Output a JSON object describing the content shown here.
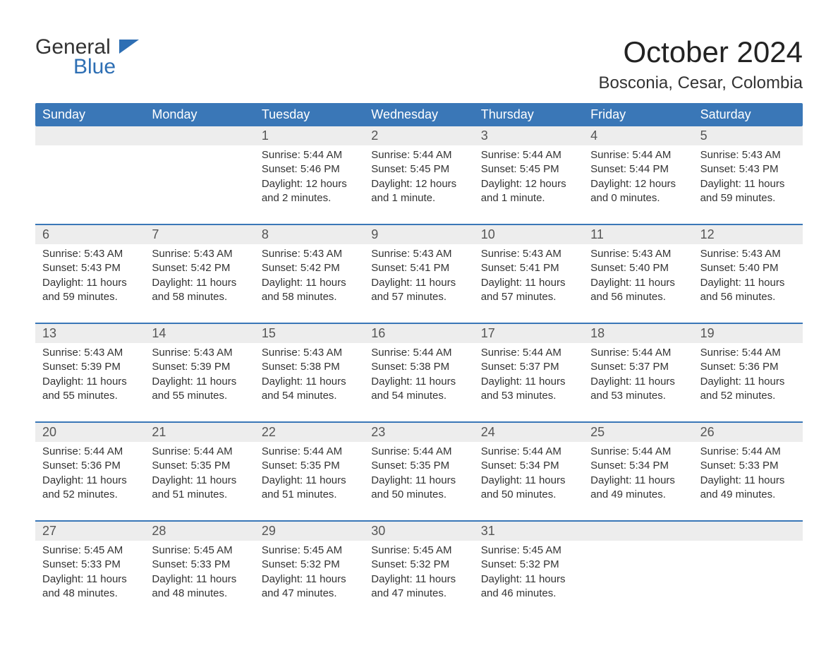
{
  "brand": {
    "part1": "General",
    "part2": "Blue"
  },
  "title": "October 2024",
  "location": "Bosconia, Cesar, Colombia",
  "colors": {
    "header_bg": "#3a77b7",
    "header_text": "#ffffff",
    "daynum_bg": "#ededed",
    "border_top": "#3a77b7",
    "page_bg": "#ffffff",
    "text": "#333333",
    "brand_blue": "#2e6fb4"
  },
  "day_names": [
    "Sunday",
    "Monday",
    "Tuesday",
    "Wednesday",
    "Thursday",
    "Friday",
    "Saturday"
  ],
  "weeks": [
    {
      "nums": [
        "",
        "",
        "1",
        "2",
        "3",
        "4",
        "5"
      ],
      "cells": [
        {
          "sunrise": "",
          "sunset": "",
          "daylight1": "",
          "daylight2": ""
        },
        {
          "sunrise": "",
          "sunset": "",
          "daylight1": "",
          "daylight2": ""
        },
        {
          "sunrise": "Sunrise: 5:44 AM",
          "sunset": "Sunset: 5:46 PM",
          "daylight1": "Daylight: 12 hours",
          "daylight2": "and 2 minutes."
        },
        {
          "sunrise": "Sunrise: 5:44 AM",
          "sunset": "Sunset: 5:45 PM",
          "daylight1": "Daylight: 12 hours",
          "daylight2": "and 1 minute."
        },
        {
          "sunrise": "Sunrise: 5:44 AM",
          "sunset": "Sunset: 5:45 PM",
          "daylight1": "Daylight: 12 hours",
          "daylight2": "and 1 minute."
        },
        {
          "sunrise": "Sunrise: 5:44 AM",
          "sunset": "Sunset: 5:44 PM",
          "daylight1": "Daylight: 12 hours",
          "daylight2": "and 0 minutes."
        },
        {
          "sunrise": "Sunrise: 5:43 AM",
          "sunset": "Sunset: 5:43 PM",
          "daylight1": "Daylight: 11 hours",
          "daylight2": "and 59 minutes."
        }
      ]
    },
    {
      "nums": [
        "6",
        "7",
        "8",
        "9",
        "10",
        "11",
        "12"
      ],
      "cells": [
        {
          "sunrise": "Sunrise: 5:43 AM",
          "sunset": "Sunset: 5:43 PM",
          "daylight1": "Daylight: 11 hours",
          "daylight2": "and 59 minutes."
        },
        {
          "sunrise": "Sunrise: 5:43 AM",
          "sunset": "Sunset: 5:42 PM",
          "daylight1": "Daylight: 11 hours",
          "daylight2": "and 58 minutes."
        },
        {
          "sunrise": "Sunrise: 5:43 AM",
          "sunset": "Sunset: 5:42 PM",
          "daylight1": "Daylight: 11 hours",
          "daylight2": "and 58 minutes."
        },
        {
          "sunrise": "Sunrise: 5:43 AM",
          "sunset": "Sunset: 5:41 PM",
          "daylight1": "Daylight: 11 hours",
          "daylight2": "and 57 minutes."
        },
        {
          "sunrise": "Sunrise: 5:43 AM",
          "sunset": "Sunset: 5:41 PM",
          "daylight1": "Daylight: 11 hours",
          "daylight2": "and 57 minutes."
        },
        {
          "sunrise": "Sunrise: 5:43 AM",
          "sunset": "Sunset: 5:40 PM",
          "daylight1": "Daylight: 11 hours",
          "daylight2": "and 56 minutes."
        },
        {
          "sunrise": "Sunrise: 5:43 AM",
          "sunset": "Sunset: 5:40 PM",
          "daylight1": "Daylight: 11 hours",
          "daylight2": "and 56 minutes."
        }
      ]
    },
    {
      "nums": [
        "13",
        "14",
        "15",
        "16",
        "17",
        "18",
        "19"
      ],
      "cells": [
        {
          "sunrise": "Sunrise: 5:43 AM",
          "sunset": "Sunset: 5:39 PM",
          "daylight1": "Daylight: 11 hours",
          "daylight2": "and 55 minutes."
        },
        {
          "sunrise": "Sunrise: 5:43 AM",
          "sunset": "Sunset: 5:39 PM",
          "daylight1": "Daylight: 11 hours",
          "daylight2": "and 55 minutes."
        },
        {
          "sunrise": "Sunrise: 5:43 AM",
          "sunset": "Sunset: 5:38 PM",
          "daylight1": "Daylight: 11 hours",
          "daylight2": "and 54 minutes."
        },
        {
          "sunrise": "Sunrise: 5:44 AM",
          "sunset": "Sunset: 5:38 PM",
          "daylight1": "Daylight: 11 hours",
          "daylight2": "and 54 minutes."
        },
        {
          "sunrise": "Sunrise: 5:44 AM",
          "sunset": "Sunset: 5:37 PM",
          "daylight1": "Daylight: 11 hours",
          "daylight2": "and 53 minutes."
        },
        {
          "sunrise": "Sunrise: 5:44 AM",
          "sunset": "Sunset: 5:37 PM",
          "daylight1": "Daylight: 11 hours",
          "daylight2": "and 53 minutes."
        },
        {
          "sunrise": "Sunrise: 5:44 AM",
          "sunset": "Sunset: 5:36 PM",
          "daylight1": "Daylight: 11 hours",
          "daylight2": "and 52 minutes."
        }
      ]
    },
    {
      "nums": [
        "20",
        "21",
        "22",
        "23",
        "24",
        "25",
        "26"
      ],
      "cells": [
        {
          "sunrise": "Sunrise: 5:44 AM",
          "sunset": "Sunset: 5:36 PM",
          "daylight1": "Daylight: 11 hours",
          "daylight2": "and 52 minutes."
        },
        {
          "sunrise": "Sunrise: 5:44 AM",
          "sunset": "Sunset: 5:35 PM",
          "daylight1": "Daylight: 11 hours",
          "daylight2": "and 51 minutes."
        },
        {
          "sunrise": "Sunrise: 5:44 AM",
          "sunset": "Sunset: 5:35 PM",
          "daylight1": "Daylight: 11 hours",
          "daylight2": "and 51 minutes."
        },
        {
          "sunrise": "Sunrise: 5:44 AM",
          "sunset": "Sunset: 5:35 PM",
          "daylight1": "Daylight: 11 hours",
          "daylight2": "and 50 minutes."
        },
        {
          "sunrise": "Sunrise: 5:44 AM",
          "sunset": "Sunset: 5:34 PM",
          "daylight1": "Daylight: 11 hours",
          "daylight2": "and 50 minutes."
        },
        {
          "sunrise": "Sunrise: 5:44 AM",
          "sunset": "Sunset: 5:34 PM",
          "daylight1": "Daylight: 11 hours",
          "daylight2": "and 49 minutes."
        },
        {
          "sunrise": "Sunrise: 5:44 AM",
          "sunset": "Sunset: 5:33 PM",
          "daylight1": "Daylight: 11 hours",
          "daylight2": "and 49 minutes."
        }
      ]
    },
    {
      "nums": [
        "27",
        "28",
        "29",
        "30",
        "31",
        "",
        ""
      ],
      "cells": [
        {
          "sunrise": "Sunrise: 5:45 AM",
          "sunset": "Sunset: 5:33 PM",
          "daylight1": "Daylight: 11 hours",
          "daylight2": "and 48 minutes."
        },
        {
          "sunrise": "Sunrise: 5:45 AM",
          "sunset": "Sunset: 5:33 PM",
          "daylight1": "Daylight: 11 hours",
          "daylight2": "and 48 minutes."
        },
        {
          "sunrise": "Sunrise: 5:45 AM",
          "sunset": "Sunset: 5:32 PM",
          "daylight1": "Daylight: 11 hours",
          "daylight2": "and 47 minutes."
        },
        {
          "sunrise": "Sunrise: 5:45 AM",
          "sunset": "Sunset: 5:32 PM",
          "daylight1": "Daylight: 11 hours",
          "daylight2": "and 47 minutes."
        },
        {
          "sunrise": "Sunrise: 5:45 AM",
          "sunset": "Sunset: 5:32 PM",
          "daylight1": "Daylight: 11 hours",
          "daylight2": "and 46 minutes."
        },
        {
          "sunrise": "",
          "sunset": "",
          "daylight1": "",
          "daylight2": ""
        },
        {
          "sunrise": "",
          "sunset": "",
          "daylight1": "",
          "daylight2": ""
        }
      ]
    }
  ]
}
